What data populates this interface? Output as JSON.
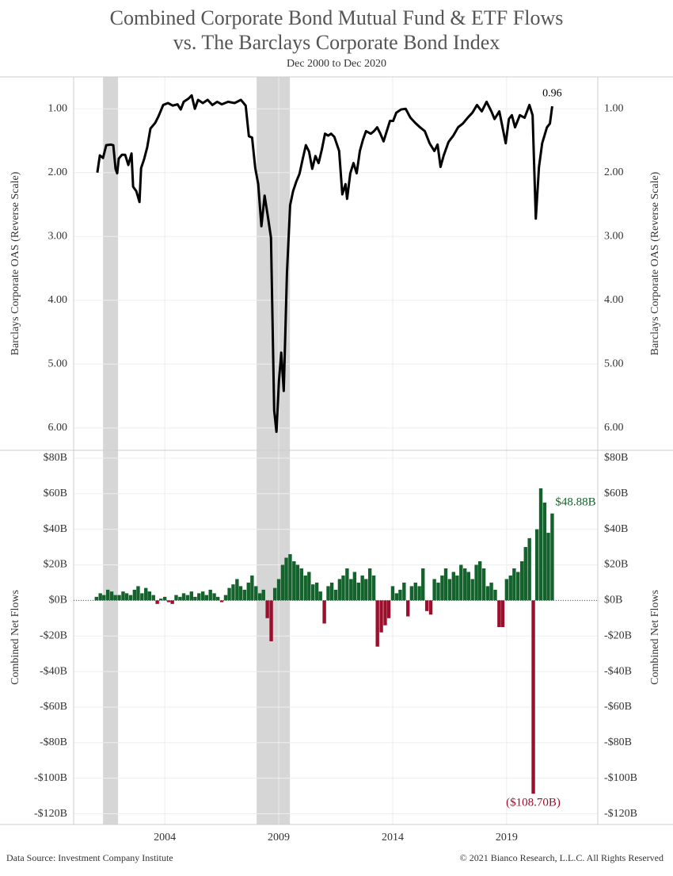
{
  "chart_data": [
    {
      "type": "line",
      "title": "Combined Corporate Bond Mutual Fund & ETF Flows",
      "title_line2": "vs. The Barclays Corporate Bond Index",
      "subtitle": "Dec 2000 to Dec 2020",
      "y_label": "Barclays Corporate OAS (Reverse Scale)",
      "color": "#000000",
      "reversed": true,
      "xlim": [
        2000,
        2023
      ],
      "xticks": [
        2004,
        2009,
        2014,
        2019
      ],
      "ylim": [
        0.5,
        6.35
      ],
      "yticks": [
        {
          "value": 1,
          "label": "1.00"
        },
        {
          "value": 2,
          "label": "2.00"
        },
        {
          "value": 3,
          "label": "3.00"
        },
        {
          "value": 4,
          "label": "4.00"
        },
        {
          "value": 5,
          "label": "5.00"
        },
        {
          "value": 6,
          "label": "6.00"
        }
      ],
      "shaded_ranges": [
        [
          2001.29,
          2001.95
        ],
        [
          2008.03,
          2009.49
        ]
      ],
      "x": [
        2001.04,
        2001.15,
        2001.29,
        2001.43,
        2001.63,
        2001.74,
        2001.84,
        2001.91,
        2001.98,
        2002.12,
        2002.26,
        2002.4,
        2002.54,
        2002.61,
        2002.75,
        2002.89,
        2002.96,
        2003.1,
        2003.23,
        2003.37,
        2003.58,
        2003.72,
        2003.93,
        2004.14,
        2004.35,
        2004.56,
        2004.7,
        2004.83,
        2005.04,
        2005.18,
        2005.32,
        2005.46,
        2005.67,
        2005.88,
        2006.09,
        2006.3,
        2006.5,
        2006.78,
        2007.06,
        2007.34,
        2007.55,
        2007.69,
        2007.83,
        2007.97,
        2008.1,
        2008.24,
        2008.38,
        2008.52,
        2008.66,
        2008.8,
        2008.9,
        2009.01,
        2009.11,
        2009.22,
        2009.36,
        2009.5,
        2009.63,
        2009.77,
        2009.91,
        2010.05,
        2010.19,
        2010.33,
        2010.47,
        2010.61,
        2010.75,
        2010.89,
        2011.03,
        2011.17,
        2011.3,
        2011.44,
        2011.65,
        2011.79,
        2011.93,
        2012.0,
        2012.14,
        2012.28,
        2012.42,
        2012.56,
        2012.7,
        2012.83,
        2013.04,
        2013.18,
        2013.32,
        2013.46,
        2013.6,
        2013.74,
        2013.88,
        2014.02,
        2014.16,
        2014.37,
        2014.57,
        2014.78,
        2014.99,
        2015.2,
        2015.41,
        2015.62,
        2015.83,
        2015.97,
        2016.1,
        2016.24,
        2016.45,
        2016.66,
        2016.87,
        2017.08,
        2017.29,
        2017.5,
        2017.7,
        2017.91,
        2018.12,
        2018.33,
        2018.47,
        2018.68,
        2018.82,
        2018.96,
        2019.1,
        2019.23,
        2019.37,
        2019.58,
        2019.79,
        2020.0,
        2020.14,
        2020.28,
        2020.42,
        2020.56,
        2020.77,
        2020.9,
        2021.0
      ],
      "values": [
        2.0,
        1.73,
        1.77,
        1.57,
        1.56,
        1.57,
        1.94,
        2.01,
        1.78,
        1.72,
        1.72,
        1.88,
        1.7,
        2.22,
        2.29,
        2.46,
        1.93,
        1.78,
        1.6,
        1.31,
        1.22,
        1.12,
        0.94,
        0.91,
        0.95,
        0.93,
        1.01,
        0.89,
        0.84,
        0.79,
        1.0,
        0.86,
        0.91,
        0.86,
        0.94,
        0.89,
        0.93,
        0.89,
        0.91,
        0.86,
        0.95,
        1.43,
        1.45,
        1.93,
        2.18,
        2.84,
        2.36,
        2.68,
        3.02,
        5.73,
        6.06,
        5.26,
        4.82,
        5.42,
        3.58,
        2.51,
        2.29,
        2.14,
        2.02,
        1.79,
        1.57,
        1.67,
        1.94,
        1.74,
        1.85,
        1.64,
        1.39,
        1.42,
        1.39,
        1.44,
        1.66,
        2.34,
        2.18,
        2.41,
        2.01,
        1.85,
        2.01,
        1.66,
        1.48,
        1.35,
        1.39,
        1.35,
        1.29,
        1.39,
        1.51,
        1.35,
        1.19,
        1.19,
        1.06,
        1.01,
        1.0,
        1.14,
        1.22,
        1.29,
        1.35,
        1.54,
        1.66,
        1.56,
        1.91,
        1.73,
        1.52,
        1.42,
        1.29,
        1.23,
        1.14,
        1.06,
        0.94,
        1.04,
        0.89,
        1.04,
        1.16,
        1.04,
        1.29,
        1.54,
        1.16,
        1.1,
        1.29,
        1.1,
        1.14,
        0.94,
        1.1,
        2.72,
        1.91,
        1.54,
        1.29,
        1.23,
        0.96
      ]
    },
    {
      "type": "bar",
      "y_label": "Combined Net Flows",
      "positive_color": "#14622c",
      "negative_color": "#9c0f2c",
      "xlim": [
        2000,
        2023
      ],
      "xticks": [
        2004,
        2009,
        2014,
        2019
      ],
      "ylim": [
        -126,
        84.4
      ],
      "yticks": [
        {
          "value": 80,
          "label": "$80B"
        },
        {
          "value": 60,
          "label": "$60B"
        },
        {
          "value": 40,
          "label": "$40B"
        },
        {
          "value": 20,
          "label": "$20B"
        },
        {
          "value": 0,
          "label": "$0B"
        },
        {
          "value": -20,
          "label": "-$20B"
        },
        {
          "value": -40,
          "label": "-$40B"
        },
        {
          "value": -60,
          "label": "-$60B"
        },
        {
          "value": -80,
          "label": "-$80B"
        },
        {
          "value": -100,
          "label": "-$100B"
        },
        {
          "value": -120,
          "label": "-$120B"
        }
      ],
      "x": [
        2001,
        2001.17,
        2001.33,
        2001.5,
        2001.67,
        2001.83,
        2002,
        2002.17,
        2002.33,
        2002.5,
        2002.67,
        2002.83,
        2003,
        2003.17,
        2003.33,
        2003.5,
        2003.67,
        2003.83,
        2004,
        2004.17,
        2004.33,
        2004.5,
        2004.67,
        2004.83,
        2005,
        2005.17,
        2005.33,
        2005.5,
        2005.67,
        2005.83,
        2006,
        2006.17,
        2006.33,
        2006.5,
        2006.67,
        2006.83,
        2007,
        2007.17,
        2007.33,
        2007.5,
        2007.67,
        2007.83,
        2008,
        2008.17,
        2008.33,
        2008.5,
        2008.67,
        2008.83,
        2009,
        2009.17,
        2009.33,
        2009.5,
        2009.67,
        2009.83,
        2010,
        2010.17,
        2010.33,
        2010.5,
        2010.67,
        2010.83,
        2011,
        2011.17,
        2011.33,
        2011.5,
        2011.67,
        2011.83,
        2012,
        2012.17,
        2012.33,
        2012.5,
        2012.67,
        2012.83,
        2013,
        2013.17,
        2013.33,
        2013.5,
        2013.67,
        2013.83,
        2014,
        2014.17,
        2014.33,
        2014.5,
        2014.67,
        2014.83,
        2015,
        2015.17,
        2015.33,
        2015.5,
        2015.67,
        2015.83,
        2016,
        2016.17,
        2016.33,
        2016.5,
        2016.67,
        2016.83,
        2017,
        2017.17,
        2017.33,
        2017.5,
        2017.67,
        2017.83,
        2018,
        2018.17,
        2018.33,
        2018.5,
        2018.67,
        2018.83,
        2019,
        2019.17,
        2019.33,
        2019.5,
        2019.67,
        2019.83,
        2020,
        2020.17,
        2020.33,
        2020.5,
        2020.67,
        2020.83,
        2021
      ],
      "values": [
        2,
        4,
        3,
        6,
        5,
        3,
        3,
        5,
        4,
        3,
        6,
        8,
        4,
        7,
        5,
        3,
        -2,
        1,
        2,
        -1,
        -2,
        3,
        2,
        4,
        3,
        5,
        2,
        4,
        5,
        3,
        6,
        4,
        2,
        -1,
        3,
        7,
        9,
        12,
        8,
        6,
        10,
        14,
        8,
        4,
        6,
        -10,
        -23,
        7,
        12,
        20,
        24,
        26,
        22,
        20,
        18,
        14,
        16,
        9,
        10,
        5,
        -13,
        8,
        10,
        6,
        12,
        14,
        18,
        12,
        16,
        10,
        14,
        12,
        18,
        14,
        -26,
        -18,
        -14,
        -10,
        8,
        4,
        6,
        10,
        -9,
        8,
        10,
        8,
        18,
        -6,
        -8,
        12,
        10,
        14,
        18,
        12,
        16,
        14,
        20,
        18,
        16,
        12,
        20,
        22,
        18,
        8,
        10,
        6,
        -15,
        -15,
        12,
        14,
        18,
        16,
        22,
        30,
        35,
        -108.7,
        40,
        63,
        55,
        38,
        48.88
      ],
      "value_labels": [
        null,
        null,
        null,
        null,
        null,
        null,
        null,
        null,
        null,
        null,
        null,
        null,
        null,
        null,
        null,
        null,
        null,
        null,
        null,
        null,
        null,
        null,
        null,
        null,
        null,
        null,
        null,
        null,
        null,
        null,
        null,
        null,
        null,
        null,
        null,
        null,
        null,
        null,
        null,
        null,
        null,
        null,
        null,
        null,
        null,
        null,
        null,
        null,
        null,
        null,
        null,
        null,
        null,
        null,
        null,
        null,
        null,
        null,
        null,
        null,
        null,
        null,
        null,
        null,
        null,
        null,
        null,
        null,
        null,
        null,
        null,
        null,
        null,
        null,
        null,
        null,
        null,
        null,
        null,
        null,
        null,
        null,
        null,
        null,
        null,
        null,
        null,
        null,
        null,
        null,
        null,
        null,
        null,
        null,
        null,
        null,
        null,
        null,
        null,
        null,
        null,
        null,
        null,
        null,
        null,
        null,
        null,
        null,
        null,
        null,
        null,
        null,
        null,
        null,
        null,
        "($108.70B)",
        null,
        null,
        null,
        null,
        "$48.88B"
      ]
    }
  ],
  "footer": {
    "source": "Data Source: Investment Company Institute",
    "copyright": "© 2021 Bianco Research, L.L.C. All Rights Reserved"
  }
}
